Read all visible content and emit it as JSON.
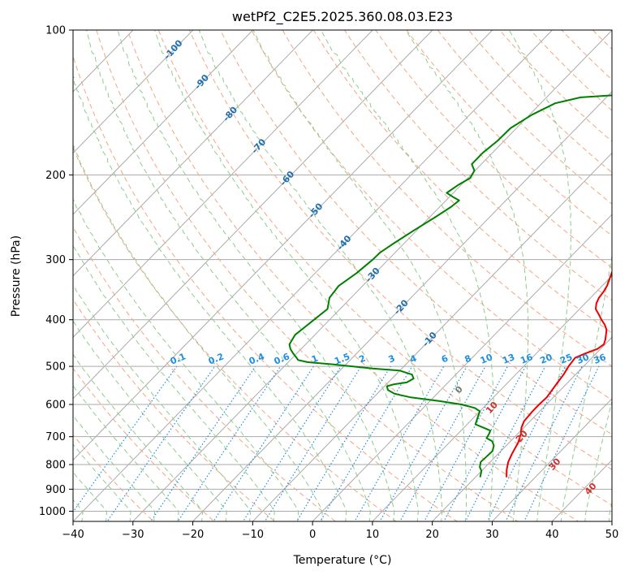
{
  "chart_data": {
    "type": "line",
    "subtype": "skew-t log-p",
    "title": "wetPf2_C2E5.2025.360.08.03.E23",
    "xlabel": "Temperature (°C)",
    "ylabel": "Pressure (hPa)",
    "xlim": [
      -40,
      50
    ],
    "ylim": [
      1050,
      100
    ],
    "y_scale": "log",
    "x_ticks": [
      "−40",
      "−30",
      "−20",
      "−10",
      "0",
      "10",
      "20",
      "30",
      "40",
      "50"
    ],
    "y_ticks": [
      "100",
      "200",
      "300",
      "400",
      "500",
      "600",
      "700",
      "800",
      "900",
      "1000"
    ],
    "grid": true,
    "series": [
      {
        "color": "#ee0000",
        "points": [
          [
            25.2,
            850
          ],
          [
            24,
            820
          ],
          [
            23,
            790
          ],
          [
            22.3,
            760
          ],
          [
            21.5,
            720
          ],
          [
            20.5,
            690
          ],
          [
            19.6,
            670
          ],
          [
            19,
            650
          ],
          [
            18.8,
            620
          ],
          [
            18.8,
            600
          ],
          [
            18.9,
            580
          ],
          [
            18.6,
            560
          ],
          [
            18.3,
            540
          ],
          [
            18,
            520
          ],
          [
            17.5,
            500
          ],
          [
            17.2,
            480
          ],
          [
            18.2,
            470
          ],
          [
            19.5,
            460
          ],
          [
            19.8,
            450
          ],
          [
            19.3,
            440
          ],
          [
            17.9,
            420
          ],
          [
            16.8,
            410
          ],
          [
            15.4,
            400
          ],
          [
            14.1,
            390
          ],
          [
            12.7,
            380
          ],
          [
            11.9,
            370
          ],
          [
            11.4,
            360
          ],
          [
            11.2,
            350
          ],
          [
            10.8,
            340
          ],
          [
            9.5,
            320
          ],
          [
            8.3,
            300
          ],
          [
            7.3,
            290
          ],
          [
            6.1,
            270
          ],
          [
            5,
            250
          ],
          [
            4.5,
            240
          ],
          [
            4.8,
            232
          ],
          [
            6.5,
            224
          ],
          [
            9.2,
            216
          ],
          [
            11.4,
            208
          ],
          [
            12.1,
            200
          ],
          [
            11.7,
            192
          ],
          [
            10.5,
            185
          ],
          [
            8.9,
            178
          ],
          [
            7.3,
            170
          ],
          [
            6.2,
            162
          ],
          [
            5.7,
            155
          ],
          [
            5.5,
            145
          ],
          [
            5.3,
            137
          ],
          [
            4.6,
            130
          ],
          [
            3.1,
            122
          ],
          [
            2.4,
            115
          ],
          [
            2.4,
            108
          ],
          [
            2.4,
            100
          ]
        ]
      },
      {
        "color": "#008000",
        "points": [
          [
            20.8,
            850
          ],
          [
            20,
            825
          ],
          [
            19.1,
            810
          ],
          [
            18.4,
            790
          ],
          [
            18.5,
            770
          ],
          [
            18.6,
            750
          ],
          [
            17.9,
            730
          ],
          [
            16.9,
            715
          ],
          [
            15.5,
            705
          ],
          [
            15.2,
            690
          ],
          [
            14.9,
            680
          ],
          [
            13.2,
            670
          ],
          [
            11.4,
            660
          ],
          [
            10.7,
            640
          ],
          [
            10,
            620
          ],
          [
            8.6,
            610
          ],
          [
            5.8,
            600
          ],
          [
            1.5,
            590
          ],
          [
            -3.8,
            580
          ],
          [
            -7.1,
            570
          ],
          [
            -8.8,
            560
          ],
          [
            -9.6,
            550
          ],
          [
            -8.8,
            545
          ],
          [
            -6.9,
            540
          ],
          [
            -6.4,
            530
          ],
          [
            -7.3,
            520
          ],
          [
            -10.1,
            510
          ],
          [
            -14.9,
            505
          ],
          [
            -22.4,
            495
          ],
          [
            -26.8,
            490
          ],
          [
            -28.7,
            485
          ],
          [
            -29.3,
            480
          ],
          [
            -30.6,
            470
          ],
          [
            -31.8,
            460
          ],
          [
            -32.7,
            450
          ],
          [
            -33.3,
            430
          ],
          [
            -32.6,
            400
          ],
          [
            -32.1,
            380
          ],
          [
            -33.6,
            360
          ],
          [
            -34,
            340
          ],
          [
            -33.1,
            320
          ],
          [
            -32.6,
            300
          ],
          [
            -32.5,
            290
          ],
          [
            -31.9,
            280
          ],
          [
            -30.4,
            260
          ],
          [
            -29.1,
            245
          ],
          [
            -28.1,
            233
          ],
          [
            -27.8,
            226
          ],
          [
            -29.5,
            222
          ],
          [
            -31.1,
            218
          ],
          [
            -30.5,
            210
          ],
          [
            -29.6,
            203
          ],
          [
            -30.1,
            196
          ],
          [
            -31.6,
            190
          ],
          [
            -31.6,
            180
          ],
          [
            -31.1,
            170
          ],
          [
            -31,
            160
          ],
          [
            -29.6,
            150
          ],
          [
            -27.6,
            142
          ],
          [
            -24.3,
            138
          ],
          [
            -13,
            135
          ],
          [
            -6.5,
            133
          ],
          [
            -3.8,
            131
          ],
          [
            -1.9,
            127
          ],
          [
            -1.3,
            122
          ],
          [
            -0.8,
            115
          ],
          [
            -0.4,
            108
          ],
          [
            1,
            100
          ]
        ]
      }
    ],
    "dry_adiabat_labels": [
      "-100",
      "-90",
      "-80",
      "-70",
      "-60",
      "-50",
      "-40",
      "-30",
      "-20",
      "-10"
    ],
    "mixing_ratio_labels": [
      "0.1",
      "0.2",
      "0.4",
      "0.6",
      "1",
      "1.5",
      "2",
      "3",
      "4",
      "6",
      "8",
      "10",
      "13",
      "16",
      "20",
      "25",
      "30",
      "36"
    ],
    "moist_adiabat_labels": [
      "0",
      "10",
      "20",
      "30",
      "40"
    ],
    "colors": {
      "isotherm": "#aaaaaa",
      "dry_adiabat": "#f4a582",
      "moist_adiabat": "#8fcc8f",
      "mixing_ratio": "#1f8fe0",
      "dry_label": "#1f6fb0",
      "moist_label": "#d03030",
      "zero_label": "#777777"
    }
  }
}
